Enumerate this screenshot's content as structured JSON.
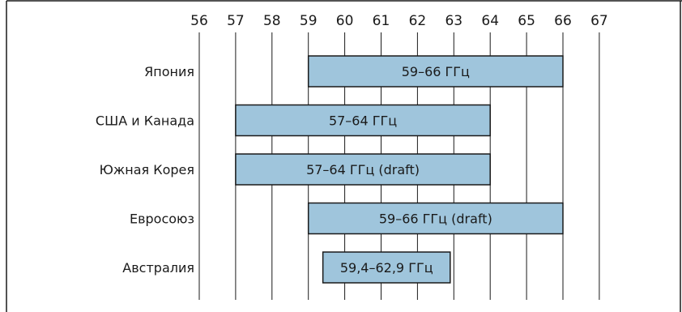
{
  "chart_data": {
    "type": "bar",
    "subtype": "range-bar",
    "title": "",
    "xlabel": "",
    "ylabel": "",
    "xlim": [
      56,
      67
    ],
    "x_ticks": [
      56,
      57,
      58,
      59,
      60,
      61,
      62,
      63,
      64,
      65,
      66,
      67
    ],
    "x_tick_labels": [
      "56",
      "57",
      "58",
      "59",
      "60",
      "61",
      "62",
      "63",
      "64",
      "65",
      "66",
      "67"
    ],
    "grid": true,
    "categories": [
      "Япония",
      "США и Канада",
      "Южная Корея",
      "Евросоюз",
      "Австралия"
    ],
    "ranges": [
      {
        "category": "Япония",
        "start": 59,
        "end": 66,
        "label": "59–66 ГГц"
      },
      {
        "category": "США и Канада",
        "start": 57,
        "end": 64,
        "label": "57–64 ГГц"
      },
      {
        "category": "Южная Корея",
        "start": 57,
        "end": 64,
        "label": "57–64 ГГц (draft)"
      },
      {
        "category": "Евросоюз",
        "start": 59,
        "end": 66,
        "label": "59–66 ГГц (draft)"
      },
      {
        "category": "Австралия",
        "start": 59.4,
        "end": 62.9,
        "label": "59,4–62,9 ГГц"
      }
    ],
    "colors": {
      "bar_fill": "#9fc5dc",
      "bar_stroke": "#1a1a1a",
      "grid": "#1a1a1a",
      "frame": "#1a1a1a"
    }
  }
}
